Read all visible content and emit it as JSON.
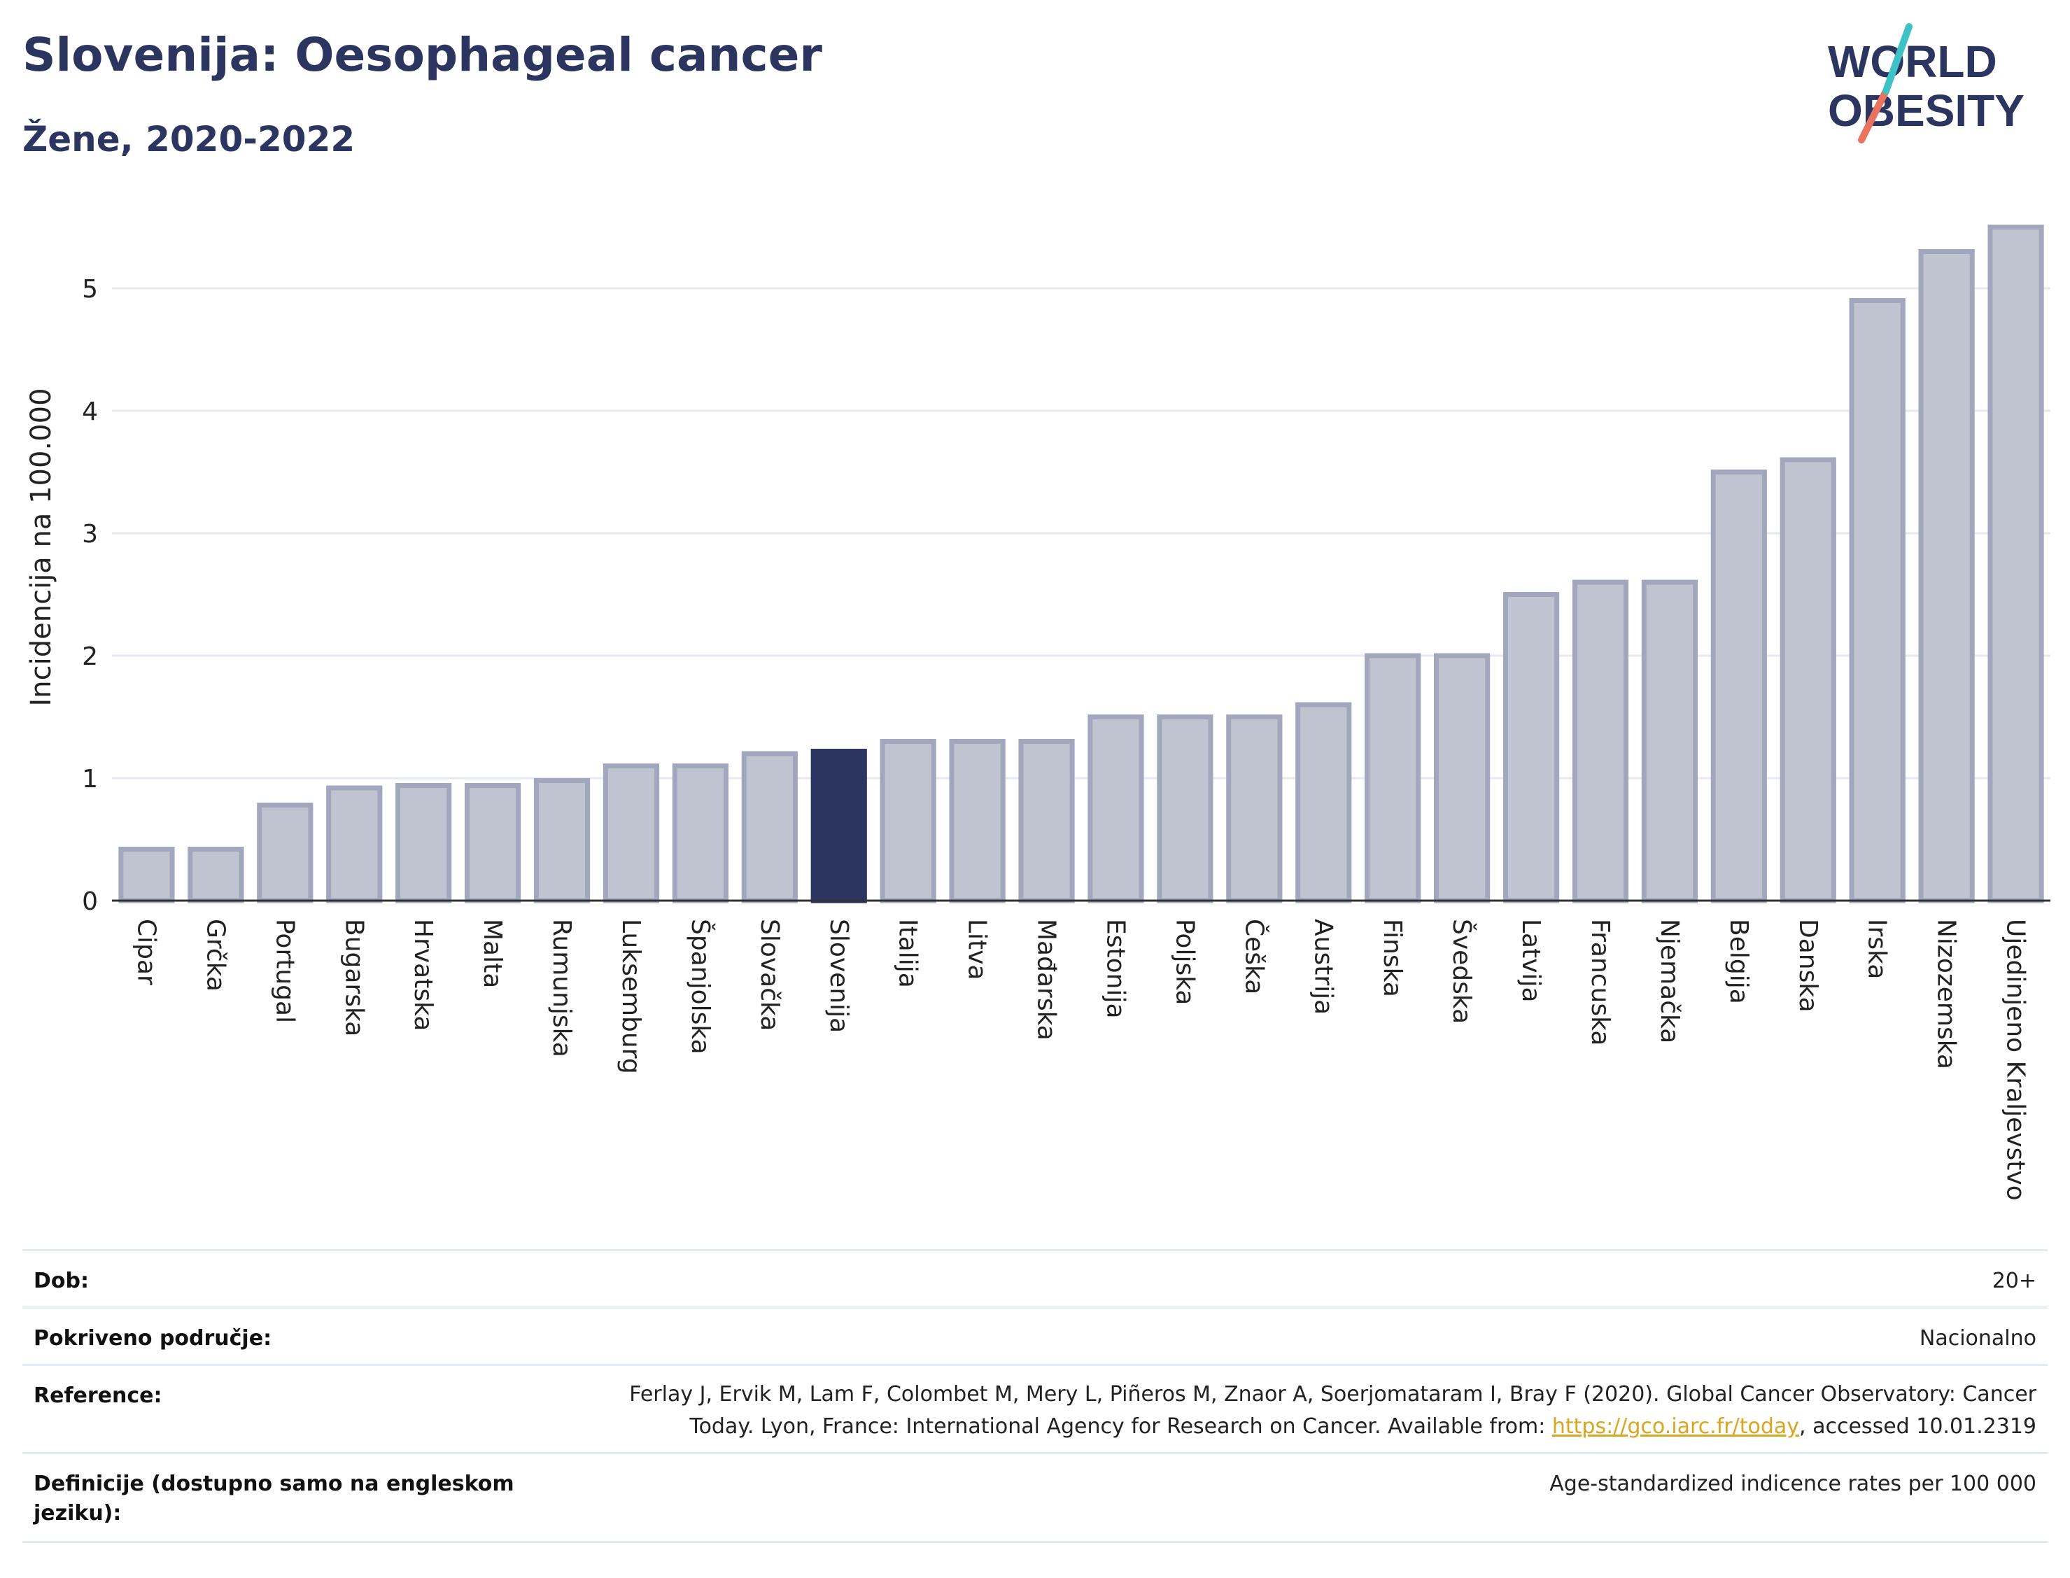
{
  "header": {
    "title": "Slovenija: Oesophageal cancer",
    "subtitle": "Žene, 2020-2022",
    "logo_line1": "WORLD",
    "logo_line2": "OBESITY"
  },
  "colors": {
    "bar": "#c0c3d0",
    "bar_stroke": "#a2a7bd",
    "highlight": "#2b355f",
    "text_dark": "#2b355f",
    "grid": "#e6e9ef",
    "link": "#d9a621"
  },
  "chart_data": {
    "type": "bar",
    "title": "Slovenija: Oesophageal cancer",
    "subtitle": "Žene, 2020-2022",
    "ylabel": "Incidencija na 100.000",
    "xlabel": "",
    "ylim": [
      0,
      5.6
    ],
    "yticks": [
      0,
      1,
      2,
      3,
      4,
      5
    ],
    "grid": true,
    "highlight": "Slovenija",
    "categories": [
      "Cipar",
      "Grčka",
      "Portugal",
      "Bugarska",
      "Hrvatska",
      "Malta",
      "Rumunjska",
      "Luksemburg",
      "Španjolska",
      "Slovačka",
      "Slovenija",
      "Italija",
      "Litva",
      "Mađarska",
      "Estonija",
      "Poljska",
      "Češka",
      "Austrija",
      "Finska",
      "Švedska",
      "Latvija",
      "Francuska",
      "Njemačka",
      "Belgija",
      "Danska",
      "Irska",
      "Nizozemska",
      "Ujedinjeno Kraljevstvo"
    ],
    "values": [
      0.42,
      0.42,
      0.78,
      0.92,
      0.94,
      0.94,
      0.98,
      1.1,
      1.1,
      1.2,
      1.22,
      1.3,
      1.3,
      1.3,
      1.5,
      1.5,
      1.5,
      1.6,
      2.0,
      2.0,
      2.5,
      2.6,
      2.6,
      3.5,
      3.6,
      4.9,
      5.3,
      5.5
    ]
  },
  "info": {
    "rows": [
      {
        "label": "Dob:",
        "value": "20+"
      },
      {
        "label": "Pokriveno područje:",
        "value": "Nacionalno"
      },
      {
        "label": "Reference:",
        "value_line1": "Ferlay J, Ervik M, Lam F, Colombet M, Mery L, Piñeros M, Znaor A, Soerjomataram I, Bray F (2020). Global Cancer Observatory: Cancer",
        "value_line2_pre": "Today. Lyon, France: International Agency for Research on Cancer. Available from: ",
        "link": "https://gco.iarc.fr/today",
        "value_line2_post": ", accessed 10.01.2319"
      },
      {
        "label_line1": "Definicije (dostupno samo na engleskom",
        "label_line2": "jeziku):",
        "value": "Age-standardized indicence rates per 100 000"
      }
    ]
  }
}
